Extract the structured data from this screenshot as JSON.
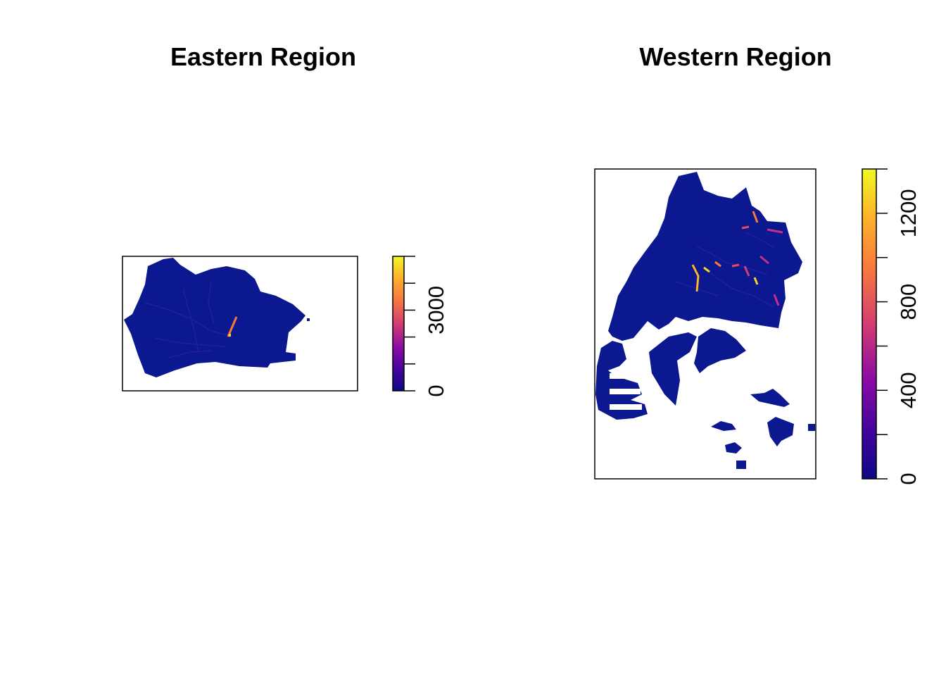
{
  "panels": [
    {
      "title": "Eastern Region",
      "legend": {
        "min": 0,
        "max": 5000,
        "ticks": [
          0,
          3000
        ],
        "minor_ticks": [
          0,
          1000,
          2000,
          3000,
          4000,
          5000
        ]
      }
    },
    {
      "title": "Western Region",
      "legend": {
        "min": 0,
        "max": 1400,
        "ticks": [
          0,
          400,
          800,
          1200
        ],
        "minor_ticks": [
          0,
          200,
          400,
          600,
          800,
          1000,
          1200,
          1400
        ]
      }
    }
  ],
  "colors": {
    "ramp": [
      "#0d0887",
      "#41049d",
      "#8b0aa5",
      "#d43d71",
      "#f9793d",
      "#fcb52a",
      "#f0f921"
    ],
    "land": "#0c1890",
    "hot": [
      "#f9793d",
      "#e8475f",
      "#fcd12a",
      "#c72d8a"
    ]
  }
}
